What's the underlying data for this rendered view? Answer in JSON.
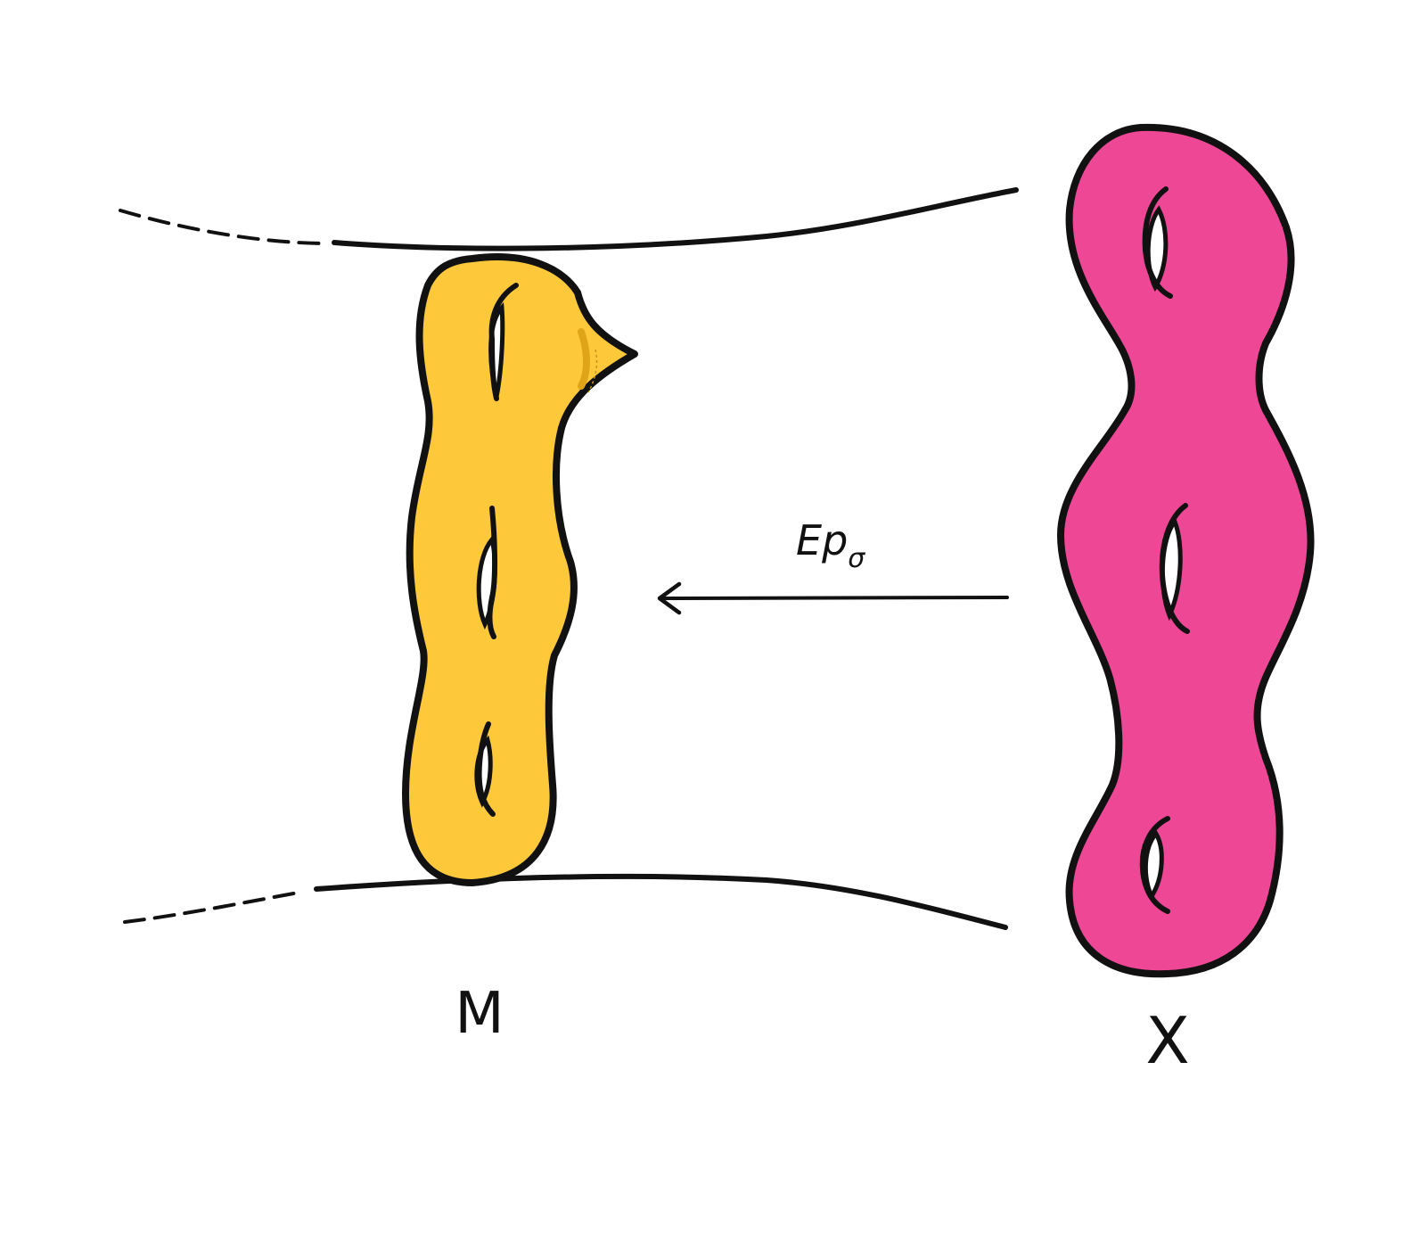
{
  "diagram": {
    "left_surface": {
      "label": "M",
      "fill_color": "#FDC93A",
      "stroke_color": "#111111",
      "holes": 3
    },
    "right_surface": {
      "label": "X",
      "fill_color": "#EE4795",
      "stroke_color": "#111111",
      "holes": 3
    },
    "arrow": {
      "label": "Ep",
      "subscript": "σ",
      "direction": "right-to-left"
    }
  }
}
